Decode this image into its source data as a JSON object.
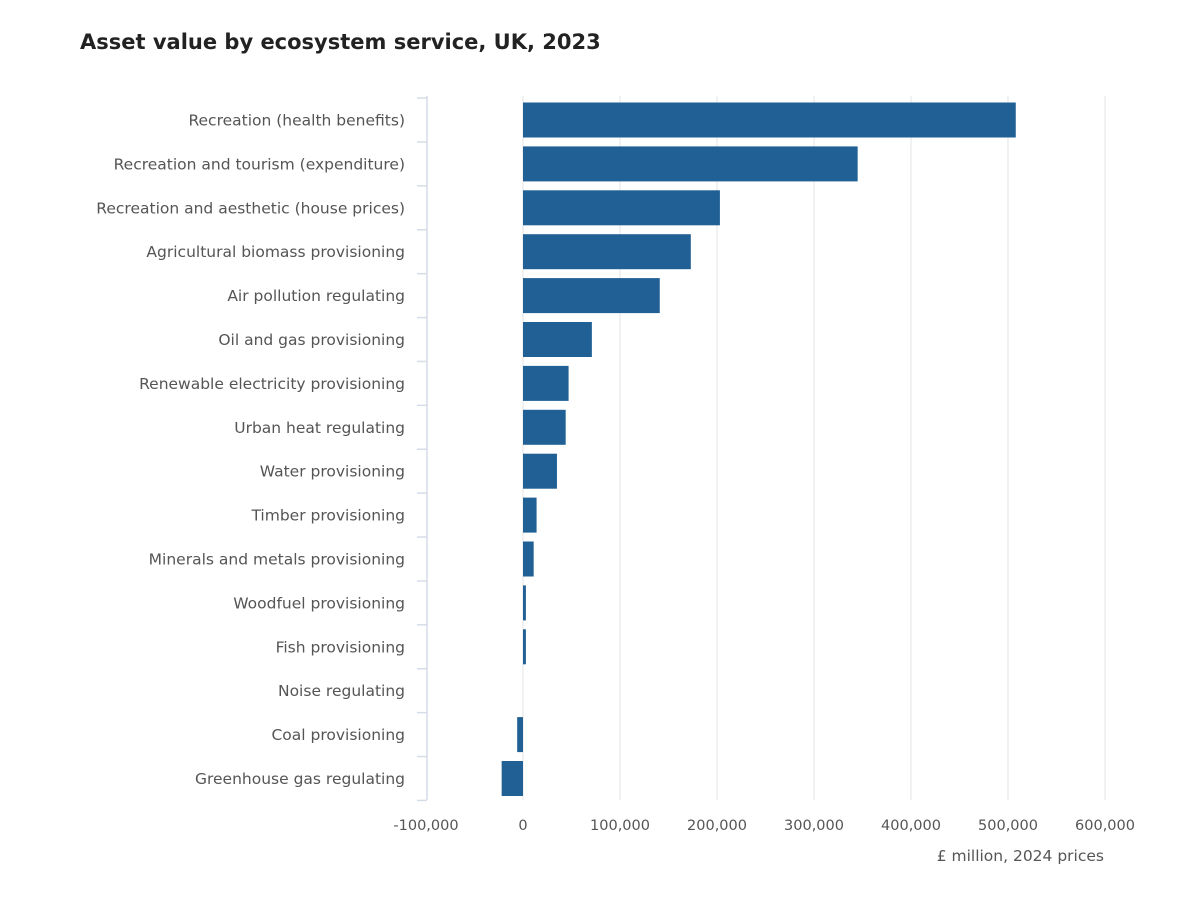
{
  "chart_data": {
    "type": "bar",
    "orientation": "horizontal",
    "title": "Asset value by ecosystem service, UK, 2023",
    "xlabel": "£ million, 2024 prices",
    "ylabel": "",
    "xlim": [
      -100000,
      600000
    ],
    "xticks": [
      -100000,
      0,
      100000,
      200000,
      300000,
      400000,
      500000,
      600000
    ],
    "xtick_labels": [
      "-100,000",
      "0",
      "100,000",
      "200,000",
      "300,000",
      "400,000",
      "500,000",
      "600,000"
    ],
    "grid": true,
    "bar_color": "#206095",
    "categories": [
      "Recreation (health benefits)",
      "Recreation and tourism (expenditure)",
      "Recreation and aesthetic (house prices)",
      "Agricultural biomass provisioning",
      "Air pollution regulating",
      "Oil and gas provisioning",
      "Renewable electricity provisioning",
      "Urban heat regulating",
      "Water provisioning",
      "Timber provisioning",
      "Minerals and metals provisioning",
      "Woodfuel provisioning",
      "Fish provisioning",
      "Noise regulating",
      "Coal provisioning",
      "Greenhouse gas regulating"
    ],
    "values": [
      508000,
      345000,
      203000,
      173000,
      141000,
      71000,
      47000,
      44000,
      35000,
      14000,
      11000,
      3000,
      3000,
      0,
      -6000,
      -22000
    ]
  }
}
